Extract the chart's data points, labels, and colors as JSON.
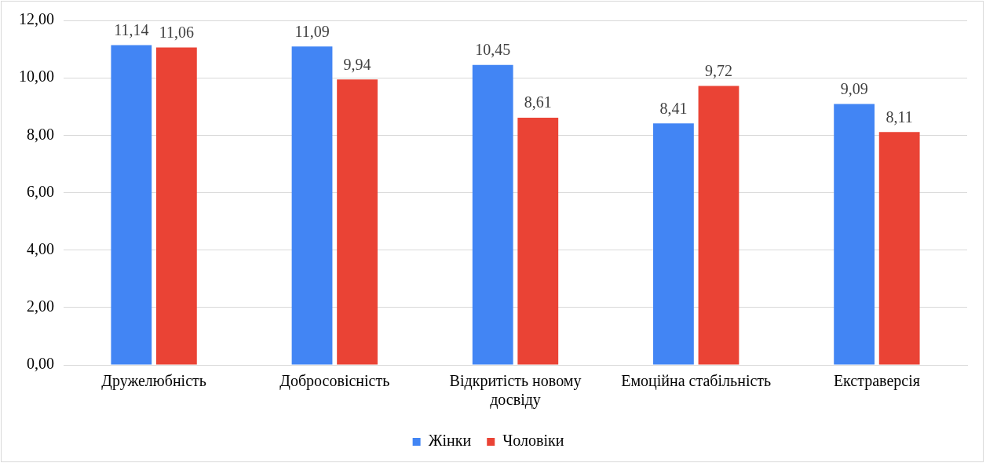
{
  "chart_data": {
    "type": "bar",
    "categories": [
      "Дружелюбність",
      "Добросовісність",
      "Відкритість новому досвіду",
      "Емоційна стабільність",
      "Екстраверсія"
    ],
    "series": [
      {
        "name": "Жінки",
        "color": "#4285f4",
        "values": [
          11.14,
          11.09,
          10.45,
          8.41,
          9.09
        ],
        "value_labels": [
          "11,14",
          "11,09",
          "10,45",
          "8,41",
          "9,09"
        ]
      },
      {
        "name": "Чоловіки",
        "color": "#ea4335",
        "values": [
          11.06,
          9.94,
          8.61,
          9.72,
          8.11
        ],
        "value_labels": [
          "11,06",
          "9,94",
          "8,61",
          "9,72",
          "8,11"
        ]
      }
    ],
    "ylim": [
      0,
      12
    ],
    "yticks": [
      {
        "value": 0,
        "label": "0,00"
      },
      {
        "value": 2,
        "label": "2,00"
      },
      {
        "value": 4,
        "label": "4,00"
      },
      {
        "value": 6,
        "label": "6,00"
      },
      {
        "value": 8,
        "label": "8,00"
      },
      {
        "value": 10,
        "label": "10,00"
      },
      {
        "value": 12,
        "label": "12,00"
      }
    ],
    "grid": "y",
    "legend": "bottom"
  }
}
